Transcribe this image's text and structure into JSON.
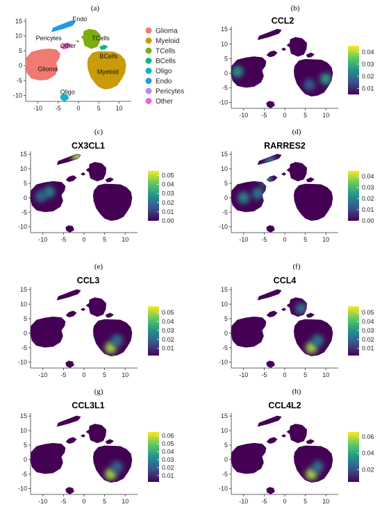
{
  "figure": {
    "panels": [
      {
        "letter": "(a)",
        "title": ""
      },
      {
        "letter": "(b)",
        "title": "CCL2"
      },
      {
        "letter": "(c)",
        "title": "CX3CL1"
      },
      {
        "letter": "(d)",
        "title": "RARRES2"
      },
      {
        "letter": "(e)",
        "title": "CCL3"
      },
      {
        "letter": "(f)",
        "title": "CCL4"
      },
      {
        "letter": "(g)",
        "title": "CCL3L1"
      },
      {
        "letter": "(h)",
        "title": "CCL4L2"
      }
    ],
    "colors": {
      "glioma": "#f07b72",
      "myeloid": "#c99a0a",
      "tcells": "#7cae10",
      "bcells": "#12b783",
      "oligo": "#14b2c6",
      "endo": "#1f9be8",
      "pericytes": "#b98af5",
      "other": "#f061d0",
      "viridis_low": "#440154",
      "viridis_high": "#fde725"
    }
  },
  "chart_data": [
    {
      "panel": "(a)",
      "type": "scatter",
      "title": "",
      "xlabel": "",
      "ylabel": "",
      "xlim": [
        -13,
        13
      ],
      "ylim": [
        -12,
        16
      ],
      "x_ticks": [
        "-10",
        "-5",
        "0",
        "5",
        "10"
      ],
      "y_ticks": [
        "15",
        "10",
        "5",
        "0",
        "-5",
        "-10"
      ],
      "cluster_labels": [
        "Endo",
        "Pericytes",
        "TCells",
        "Other",
        "BCells",
        "Glioma",
        "Myeloid",
        "Oligo"
      ],
      "legend": {
        "position": "right",
        "entries": [
          "Glioma",
          "Myeloid",
          "TCells",
          "BCells",
          "Oligo",
          "Endo",
          "Pericytes",
          "Other"
        ]
      }
    },
    {
      "panel": "(b)",
      "type": "scatter",
      "title": "CCL2",
      "colormap": "viridis",
      "xlim": [
        -13,
        13
      ],
      "ylim": [
        -12,
        16
      ],
      "x_ticks": [
        "-10",
        "-5",
        "0",
        "5",
        "10"
      ],
      "y_ticks": [
        "15",
        "10",
        "5",
        "0",
        "-5",
        "-10"
      ],
      "colorbar_ticks": [
        "0.04",
        "0.03",
        "0.02",
        "0.01"
      ],
      "colorbar_range": [
        0.005,
        0.045
      ],
      "hotspots": [
        {
          "x": -11.5,
          "y": 0.5,
          "v": 0.6
        },
        {
          "x": 10,
          "y": -2,
          "v": 0.65
        },
        {
          "x": 6,
          "y": -4,
          "v": 0.35
        }
      ]
    },
    {
      "panel": "(c)",
      "type": "scatter",
      "title": "CX3CL1",
      "colormap": "viridis",
      "xlim": [
        -13,
        13
      ],
      "ylim": [
        -12,
        16
      ],
      "x_ticks": [
        "-10",
        "-5",
        "0",
        "5",
        "10"
      ],
      "y_ticks": [
        "15",
        "10",
        "5",
        "0",
        "-5",
        "-10"
      ],
      "colorbar_ticks": [
        "0.05",
        "0.04",
        "0.03",
        "0.02",
        "0.01",
        "0.00"
      ],
      "colorbar_range": [
        0.0,
        0.055
      ],
      "hotspots": [
        {
          "x": -8.5,
          "y": 2,
          "v": 0.55
        },
        {
          "x": -10.5,
          "y": 0.5,
          "v": 0.4
        },
        {
          "x": -1.5,
          "y": 14,
          "v": 1.0
        }
      ]
    },
    {
      "panel": "(d)",
      "type": "scatter",
      "title": "RARRES2",
      "colormap": "viridis",
      "xlim": [
        -13,
        13
      ],
      "ylim": [
        -12,
        16
      ],
      "x_ticks": [
        "-10",
        "-5",
        "0",
        "5",
        "10"
      ],
      "y_ticks": [
        "15",
        "10",
        "5",
        "0",
        "-5",
        "-10"
      ],
      "colorbar_ticks": [
        "0.04",
        "0.03",
        "0.02",
        "0.01",
        "0.00"
      ],
      "colorbar_range": [
        0.0,
        0.045
      ],
      "hotspots": [
        {
          "x": -4.5,
          "y": 6,
          "v": 0.6
        },
        {
          "x": -10,
          "y": 0,
          "v": 0.55
        },
        {
          "x": -6.5,
          "y": 1.5,
          "v": 0.5
        },
        {
          "x": -3.5,
          "y": 12.5,
          "v": 0.5
        }
      ]
    },
    {
      "panel": "(e)",
      "type": "scatter",
      "title": "CCL3",
      "colormap": "viridis",
      "xlim": [
        -13,
        13
      ],
      "ylim": [
        -12,
        16
      ],
      "x_ticks": [
        "-10",
        "-5",
        "0",
        "5",
        "10"
      ],
      "y_ticks": [
        "15",
        "10",
        "5",
        "0",
        "-5",
        "-10"
      ],
      "colorbar_ticks": [
        "0.05",
        "0.04",
        "0.03",
        "0.02",
        "0.01"
      ],
      "colorbar_range": [
        0.002,
        0.057
      ],
      "hotspots": [
        {
          "x": 6.5,
          "y": -5,
          "v": 1.0
        },
        {
          "x": 8,
          "y": -2.5,
          "v": 0.45
        }
      ]
    },
    {
      "panel": "(f)",
      "type": "scatter",
      "title": "CCL4",
      "colormap": "viridis",
      "xlim": [
        -13,
        13
      ],
      "ylim": [
        -12,
        16
      ],
      "x_ticks": [
        "-10",
        "-5",
        "0",
        "5",
        "10"
      ],
      "y_ticks": [
        "15",
        "10",
        "5",
        "0",
        "-5",
        "-10"
      ],
      "colorbar_ticks": [
        "0.05",
        "0.04",
        "0.03",
        "0.02",
        "0.01"
      ],
      "colorbar_range": [
        0.002,
        0.057
      ],
      "hotspots": [
        {
          "x": 6.5,
          "y": -5,
          "v": 1.0
        },
        {
          "x": 8,
          "y": -2.5,
          "v": 0.5
        },
        {
          "x": 4,
          "y": 8.5,
          "v": 0.45
        }
      ]
    },
    {
      "panel": "(g)",
      "type": "scatter",
      "title": "CCL3L1",
      "colormap": "viridis",
      "xlim": [
        -13,
        13
      ],
      "ylim": [
        -12,
        16
      ],
      "x_ticks": [
        "-10",
        "-5",
        "0",
        "5",
        "10"
      ],
      "y_ticks": [
        "15",
        "10",
        "5",
        "0",
        "-5",
        "-10"
      ],
      "colorbar_ticks": [
        "0.06",
        "0.05",
        "0.04",
        "0.03",
        "0.02",
        "0.01"
      ],
      "colorbar_range": [
        0.002,
        0.065
      ],
      "hotspots": [
        {
          "x": 6.5,
          "y": -5,
          "v": 1.0
        },
        {
          "x": 8,
          "y": -2.5,
          "v": 0.4
        }
      ]
    },
    {
      "panel": "(h)",
      "type": "scatter",
      "title": "CCL4L2",
      "colormap": "viridis",
      "xlim": [
        -13,
        13
      ],
      "ylim": [
        -12,
        16
      ],
      "x_ticks": [
        "-10",
        "-5",
        "0",
        "5",
        "10"
      ],
      "y_ticks": [
        "15",
        "10",
        "5",
        "0",
        "-5",
        "-10"
      ],
      "colorbar_ticks": [
        "0.06",
        "0.04",
        "0.02"
      ],
      "colorbar_range": [
        0.005,
        0.066
      ],
      "hotspots": [
        {
          "x": 6.5,
          "y": -5,
          "v": 1.0
        },
        {
          "x": 8,
          "y": -2.5,
          "v": 0.45
        }
      ]
    }
  ]
}
